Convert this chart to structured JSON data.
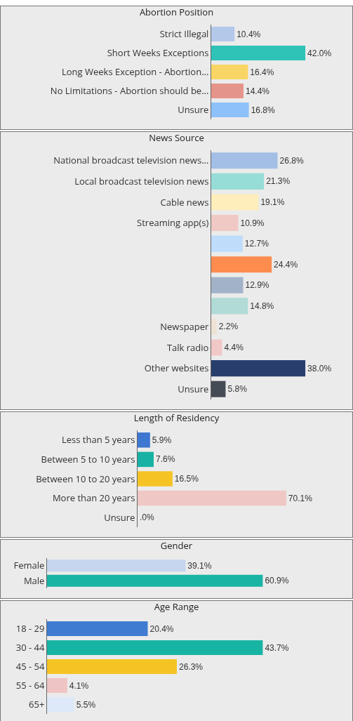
{
  "chart_data": [
    {
      "type": "bar",
      "orientation": "horizontal",
      "title": "Abortion Position",
      "tick_labels": "y",
      "categories": [
        "Strict Illegal",
        "Short Weeks Exceptions",
        "Long Weeks Exception - Abortion...",
        "No Limitations - Abortion should be...",
        "Unsure"
      ],
      "values": [
        10.4,
        42.0,
        16.4,
        14.4,
        16.8
      ],
      "value_labels": [
        "10.4%",
        "42.0%",
        "16.4%",
        "14.4%",
        "16.8%"
      ],
      "colors": [
        "#b4c8ea",
        "#2fc3b8",
        "#f9d565",
        "#e4948a",
        "#8ec1fa"
      ]
    },
    {
      "type": "bar",
      "orientation": "horizontal",
      "title": "News Source",
      "tick_labels": "y",
      "categories": [
        "National broadcast television news...",
        "Local broadcast television news",
        "Cable news",
        "Streaming app(s)",
        null,
        null,
        null,
        null,
        "Newspaper",
        "Talk radio",
        "Other websites",
        "Unsure"
      ],
      "values": [
        26.8,
        21.3,
        19.1,
        10.9,
        12.7,
        24.4,
        12.9,
        14.8,
        2.2,
        4.4,
        38.0,
        5.8
      ],
      "value_labels": [
        "26.8%",
        "21.3%",
        "19.1%",
        "10.9%",
        "12.7%",
        "24.4%",
        "12.9%",
        "14.8%",
        "2.2%",
        "4.4%",
        "38.0%",
        "5.8%"
      ],
      "colors": [
        "#a4bfe6",
        "#97ddd7",
        "#fdeebc",
        "#f0c9c4",
        "#bfdcfb",
        "#fd8c4e",
        "#a2b3c9",
        "#b1dbd6",
        "#efe3d5",
        "#f1c8c8",
        "#283f6e",
        "#464c55"
      ]
    },
    {
      "type": "bar",
      "orientation": "horizontal",
      "title": "Length of Residency",
      "tick_labels": "y",
      "categories": [
        "Less than 5 years",
        "Between 5 to 10 years",
        "Between 10 to 20 years",
        "More than 20 years",
        "Unsure"
      ],
      "values": [
        5.9,
        7.6,
        16.5,
        70.1,
        0
      ],
      "value_labels": [
        "5.9%",
        "7.6%",
        "16.5%",
        "70.1%",
        ".0%"
      ],
      "colors": [
        "#3d77d2",
        "#17b2a3",
        "#f6c324",
        "#efc7c4",
        "#dcdcec"
      ]
    },
    {
      "type": "bar",
      "orientation": "horizontal",
      "title": "Gender",
      "tick_labels": "y",
      "categories": [
        "Female",
        "Male"
      ],
      "values": [
        39.1,
        60.9
      ],
      "value_labels": [
        "39.1%",
        "60.9%"
      ],
      "colors": [
        "#c5d6ee",
        "#19b4a4"
      ]
    },
    {
      "type": "bar",
      "orientation": "horizontal",
      "title": "Age Range",
      "tick_labels": "y",
      "categories": [
        "18 - 29",
        "30 - 44",
        "45 - 54",
        "55 - 64",
        "65+"
      ],
      "values": [
        20.4,
        43.7,
        26.3,
        4.1,
        5.5
      ],
      "value_labels": [
        "20.4%",
        "43.7%",
        "26.3%",
        "4.1%",
        "5.5%"
      ],
      "colors": [
        "#3f7bd1",
        "#17b4a3",
        "#f6c324",
        "#efc4c4",
        "#dde9f8"
      ]
    }
  ]
}
